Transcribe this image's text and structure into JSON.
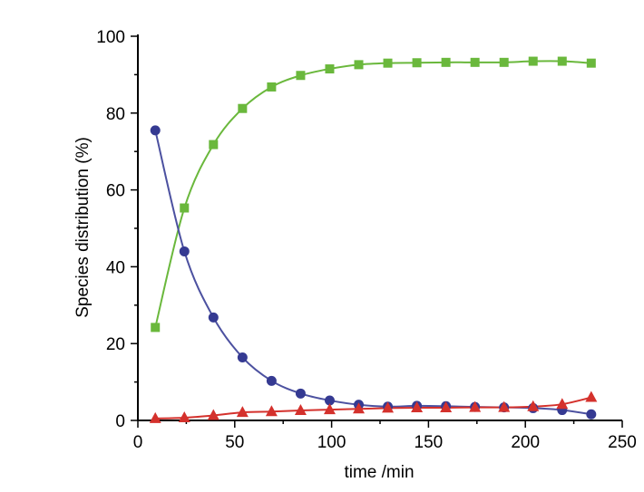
{
  "chart_data": {
    "type": "scatter",
    "title": "",
    "xlabel": "time /min",
    "ylabel": "Species distribution (%)",
    "xlim": [
      0,
      250
    ],
    "ylim": [
      0,
      100
    ],
    "xticks": [
      0,
      50,
      100,
      150,
      200,
      250
    ],
    "yticks": [
      0,
      20,
      40,
      60,
      80,
      100
    ],
    "grid": false,
    "legend": "none",
    "x": [
      9,
      24,
      39,
      54,
      69,
      84,
      99,
      114,
      129,
      144,
      159,
      174,
      189,
      204,
      219,
      234
    ],
    "series": [
      {
        "marker": "square",
        "color": "#6ab83c",
        "line_color": "#6ab83c",
        "values": [
          24.2,
          55.3,
          71.8,
          81.2,
          86.8,
          89.8,
          91.5,
          92.6,
          93.0,
          93.1,
          93.2,
          93.2,
          93.2,
          93.5,
          93.5,
          93.0
        ]
      },
      {
        "marker": "circle",
        "color": "#353a92",
        "line_color": "#4c51a0",
        "values": [
          75.5,
          44.0,
          26.8,
          16.4,
          10.3,
          7.0,
          5.2,
          4.1,
          3.6,
          3.8,
          3.7,
          3.5,
          3.4,
          3.2,
          2.7,
          1.6
        ]
      },
      {
        "marker": "triangle",
        "color": "#d4312c",
        "line_color": "#d4312c",
        "values": [
          0.5,
          0.7,
          1.3,
          2.1,
          2.3,
          2.6,
          2.8,
          3.0,
          3.2,
          3.3,
          3.3,
          3.4,
          3.4,
          3.6,
          4.2,
          6.0
        ]
      }
    ]
  }
}
